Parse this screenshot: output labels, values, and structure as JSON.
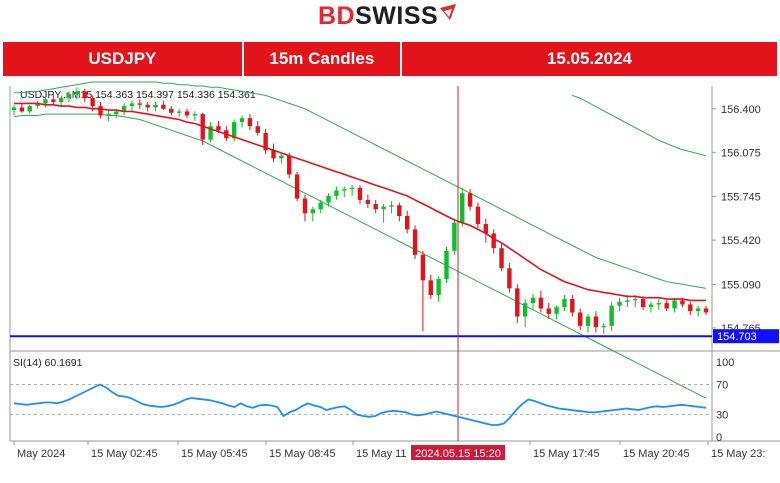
{
  "brand": {
    "bd": "BD",
    "swiss": "SWISS"
  },
  "banner": {
    "pair": "USDJPY",
    "timeframe": "15m Candles",
    "date": "15.05.2024"
  },
  "colors": {
    "accent": "#e3131b",
    "bull": "#0fbf2a",
    "bear": "#e3131b",
    "ma_fast": "#e3131b",
    "band": "#36a852",
    "support": "#1010ff",
    "rsi": "#1e8ff0",
    "cursor": "#d01a3a"
  },
  "chart_data": {
    "type": "candlestick",
    "header": "USDJPY..r,M15  154.363 154.397 154.336 154.361",
    "price_axis": {
      "ylim": [
        154.6,
        156.57
      ],
      "ticks": [
        "156.400",
        "156.075",
        "155.745",
        "155.420",
        "155.090",
        "154.765"
      ]
    },
    "time_axis": {
      "ticks": [
        "May 2024",
        "15 May 02:45",
        "15 May 05:45",
        "15 May 08:45",
        "15 May 11",
        "15 May 17:45",
        "15 May 20:45",
        "15 May 23:"
      ]
    },
    "cursor_time_label": "2024.05.15 15:20",
    "support_level": {
      "value": 154.703,
      "label": "154.703"
    },
    "candles": [
      {
        "o": 156.39,
        "h": 156.43,
        "l": 156.35,
        "c": 156.41
      },
      {
        "o": 156.41,
        "h": 156.44,
        "l": 156.37,
        "c": 156.38
      },
      {
        "o": 156.38,
        "h": 156.43,
        "l": 156.36,
        "c": 156.42
      },
      {
        "o": 156.42,
        "h": 156.46,
        "l": 156.4,
        "c": 156.44
      },
      {
        "o": 156.44,
        "h": 156.49,
        "l": 156.41,
        "c": 156.47
      },
      {
        "o": 156.47,
        "h": 156.51,
        "l": 156.43,
        "c": 156.45
      },
      {
        "o": 156.45,
        "h": 156.5,
        "l": 156.42,
        "c": 156.48
      },
      {
        "o": 156.48,
        "h": 156.53,
        "l": 156.45,
        "c": 156.51
      },
      {
        "o": 156.51,
        "h": 156.56,
        "l": 156.47,
        "c": 156.53
      },
      {
        "o": 156.53,
        "h": 156.55,
        "l": 156.45,
        "c": 156.48
      },
      {
        "o": 156.48,
        "h": 156.5,
        "l": 156.38,
        "c": 156.42
      },
      {
        "o": 156.42,
        "h": 156.45,
        "l": 156.33,
        "c": 156.35
      },
      {
        "o": 156.35,
        "h": 156.39,
        "l": 156.31,
        "c": 156.36
      },
      {
        "o": 156.36,
        "h": 156.4,
        "l": 156.33,
        "c": 156.38
      },
      {
        "o": 156.38,
        "h": 156.44,
        "l": 156.35,
        "c": 156.42
      },
      {
        "o": 156.42,
        "h": 156.46,
        "l": 156.38,
        "c": 156.44
      },
      {
        "o": 156.44,
        "h": 156.47,
        "l": 156.4,
        "c": 156.43
      },
      {
        "o": 156.43,
        "h": 156.45,
        "l": 156.38,
        "c": 156.41
      },
      {
        "o": 156.41,
        "h": 156.45,
        "l": 156.38,
        "c": 156.43
      },
      {
        "o": 156.43,
        "h": 156.46,
        "l": 156.39,
        "c": 156.4
      },
      {
        "o": 156.4,
        "h": 156.42,
        "l": 156.35,
        "c": 156.37
      },
      {
        "o": 156.37,
        "h": 156.4,
        "l": 156.34,
        "c": 156.38
      },
      {
        "o": 156.38,
        "h": 156.4,
        "l": 156.33,
        "c": 156.35
      },
      {
        "o": 156.35,
        "h": 156.38,
        "l": 156.31,
        "c": 156.36
      },
      {
        "o": 156.36,
        "h": 156.37,
        "l": 156.13,
        "c": 156.17
      },
      {
        "o": 156.17,
        "h": 156.3,
        "l": 156.15,
        "c": 156.27
      },
      {
        "o": 156.27,
        "h": 156.31,
        "l": 156.22,
        "c": 156.24
      },
      {
        "o": 156.24,
        "h": 156.27,
        "l": 156.16,
        "c": 156.18
      },
      {
        "o": 156.18,
        "h": 156.32,
        "l": 156.16,
        "c": 156.3
      },
      {
        "o": 156.3,
        "h": 156.35,
        "l": 156.26,
        "c": 156.33
      },
      {
        "o": 156.33,
        "h": 156.36,
        "l": 156.24,
        "c": 156.27
      },
      {
        "o": 156.27,
        "h": 156.31,
        "l": 156.2,
        "c": 156.22
      },
      {
        "o": 156.22,
        "h": 156.25,
        "l": 156.06,
        "c": 156.09
      },
      {
        "o": 156.09,
        "h": 156.14,
        "l": 156.0,
        "c": 156.03
      },
      {
        "o": 156.03,
        "h": 156.07,
        "l": 155.99,
        "c": 156.05
      },
      {
        "o": 156.05,
        "h": 156.07,
        "l": 155.88,
        "c": 155.91
      },
      {
        "o": 155.91,
        "h": 155.93,
        "l": 155.71,
        "c": 155.73
      },
      {
        "o": 155.73,
        "h": 155.76,
        "l": 155.56,
        "c": 155.62
      },
      {
        "o": 155.62,
        "h": 155.67,
        "l": 155.56,
        "c": 155.65
      },
      {
        "o": 155.65,
        "h": 155.72,
        "l": 155.62,
        "c": 155.7
      },
      {
        "o": 155.7,
        "h": 155.77,
        "l": 155.67,
        "c": 155.75
      },
      {
        "o": 155.75,
        "h": 155.82,
        "l": 155.72,
        "c": 155.79
      },
      {
        "o": 155.79,
        "h": 155.82,
        "l": 155.74,
        "c": 155.8
      },
      {
        "o": 155.8,
        "h": 155.83,
        "l": 155.75,
        "c": 155.81
      },
      {
        "o": 155.81,
        "h": 155.83,
        "l": 155.69,
        "c": 155.72
      },
      {
        "o": 155.72,
        "h": 155.76,
        "l": 155.66,
        "c": 155.69
      },
      {
        "o": 155.69,
        "h": 155.72,
        "l": 155.62,
        "c": 155.65
      },
      {
        "o": 155.65,
        "h": 155.69,
        "l": 155.55,
        "c": 155.67
      },
      {
        "o": 155.67,
        "h": 155.71,
        "l": 155.62,
        "c": 155.68
      },
      {
        "o": 155.68,
        "h": 155.7,
        "l": 155.56,
        "c": 155.6
      },
      {
        "o": 155.6,
        "h": 155.64,
        "l": 155.47,
        "c": 155.5
      },
      {
        "o": 155.5,
        "h": 155.53,
        "l": 155.28,
        "c": 155.31
      },
      {
        "o": 155.31,
        "h": 155.34,
        "l": 154.74,
        "c": 155.12
      },
      {
        "o": 155.12,
        "h": 155.16,
        "l": 154.98,
        "c": 155.01
      },
      {
        "o": 155.01,
        "h": 155.15,
        "l": 154.96,
        "c": 155.13
      },
      {
        "o": 155.13,
        "h": 155.37,
        "l": 155.1,
        "c": 155.34
      },
      {
        "o": 155.34,
        "h": 155.58,
        "l": 155.31,
        "c": 155.55
      },
      {
        "o": 155.55,
        "h": 155.81,
        "l": 155.52,
        "c": 155.77
      },
      {
        "o": 155.77,
        "h": 155.8,
        "l": 155.64,
        "c": 155.67
      },
      {
        "o": 155.67,
        "h": 155.7,
        "l": 155.51,
        "c": 155.54
      },
      {
        "o": 155.54,
        "h": 155.58,
        "l": 155.4,
        "c": 155.47
      },
      {
        "o": 155.47,
        "h": 155.5,
        "l": 155.32,
        "c": 155.36
      },
      {
        "o": 155.36,
        "h": 155.4,
        "l": 155.19,
        "c": 155.21
      },
      {
        "o": 155.21,
        "h": 155.25,
        "l": 155.03,
        "c": 155.06
      },
      {
        "o": 155.06,
        "h": 155.09,
        "l": 154.8,
        "c": 154.85
      },
      {
        "o": 154.85,
        "h": 154.98,
        "l": 154.77,
        "c": 154.95
      },
      {
        "o": 154.95,
        "h": 155.02,
        "l": 154.9,
        "c": 154.99
      },
      {
        "o": 154.99,
        "h": 155.04,
        "l": 154.88,
        "c": 154.91
      },
      {
        "o": 154.91,
        "h": 154.95,
        "l": 154.83,
        "c": 154.87
      },
      {
        "o": 154.87,
        "h": 154.93,
        "l": 154.83,
        "c": 154.92
      },
      {
        "o": 154.92,
        "h": 155.01,
        "l": 154.89,
        "c": 154.98
      },
      {
        "o": 154.98,
        "h": 155.01,
        "l": 154.85,
        "c": 154.88
      },
      {
        "o": 154.88,
        "h": 154.91,
        "l": 154.75,
        "c": 154.78
      },
      {
        "o": 154.78,
        "h": 154.87,
        "l": 154.73,
        "c": 154.85
      },
      {
        "o": 154.85,
        "h": 154.89,
        "l": 154.73,
        "c": 154.77
      },
      {
        "o": 154.77,
        "h": 154.8,
        "l": 154.72,
        "c": 154.78
      },
      {
        "o": 154.78,
        "h": 154.96,
        "l": 154.74,
        "c": 154.93
      },
      {
        "o": 154.93,
        "h": 154.99,
        "l": 154.89,
        "c": 154.96
      },
      {
        "o": 154.96,
        "h": 155.01,
        "l": 154.92,
        "c": 154.97
      },
      {
        "o": 154.97,
        "h": 155.01,
        "l": 154.92,
        "c": 154.98
      },
      {
        "o": 154.98,
        "h": 155.0,
        "l": 154.9,
        "c": 154.92
      },
      {
        "o": 154.92,
        "h": 154.96,
        "l": 154.88,
        "c": 154.94
      },
      {
        "o": 154.94,
        "h": 154.98,
        "l": 154.9,
        "c": 154.95
      },
      {
        "o": 154.95,
        "h": 154.97,
        "l": 154.89,
        "c": 154.91
      },
      {
        "o": 154.91,
        "h": 154.99,
        "l": 154.88,
        "c": 154.97
      },
      {
        "o": 154.97,
        "h": 154.99,
        "l": 154.92,
        "c": 154.94
      },
      {
        "o": 154.94,
        "h": 154.96,
        "l": 154.86,
        "c": 154.89
      },
      {
        "o": 154.89,
        "h": 154.93,
        "l": 154.85,
        "c": 154.91
      },
      {
        "o": 154.91,
        "h": 154.93,
        "l": 154.86,
        "c": 154.88
      }
    ],
    "ma_slow": [
      156.44,
      156.44,
      156.44,
      156.44,
      156.43,
      156.43,
      156.42,
      156.42,
      156.41,
      156.41,
      156.4,
      156.4,
      156.39,
      156.39,
      156.38,
      156.38,
      156.37,
      156.36,
      156.35,
      156.34,
      156.33,
      156.32,
      156.3,
      156.29,
      156.27,
      156.25,
      156.23,
      156.21,
      156.19,
      156.17,
      156.15,
      156.13,
      156.11,
      156.09,
      156.07,
      156.05,
      156.03,
      156.01,
      155.99,
      155.97,
      155.95,
      155.93,
      155.91,
      155.89,
      155.87,
      155.85,
      155.83,
      155.81,
      155.79,
      155.77,
      155.75,
      155.72,
      155.69,
      155.66,
      155.63,
      155.6,
      155.57,
      155.55,
      155.53,
      155.5,
      155.47,
      155.43,
      155.4,
      155.36,
      155.32,
      155.28,
      155.24,
      155.2,
      155.17,
      155.14,
      155.11,
      155.09,
      155.07,
      155.05,
      155.04,
      155.03,
      155.02,
      155.01,
      155.0,
      155.0,
      154.99,
      154.99,
      154.99,
      154.98,
      154.98,
      154.98,
      154.97,
      154.97,
      154.97
    ],
    "band_upper": [
      156.52,
      156.52,
      156.53,
      156.53,
      156.54,
      156.55,
      156.56,
      156.57,
      156.58,
      156.59,
      156.6,
      156.6,
      156.6,
      156.6,
      156.6,
      156.6,
      156.6,
      156.6,
      156.6,
      156.59,
      156.59,
      156.58,
      156.58,
      156.57,
      156.57,
      156.56,
      156.56,
      156.55,
      156.54,
      156.53,
      156.52,
      156.51,
      156.5,
      156.48,
      156.46,
      156.44,
      156.42,
      156.4,
      156.37,
      156.34,
      156.31,
      156.28,
      156.25,
      156.22,
      156.19,
      156.16,
      156.13,
      156.1,
      156.07,
      156.04,
      156.01,
      155.98,
      155.95,
      155.92,
      155.89,
      155.86,
      155.83,
      155.8,
      155.77,
      155.74,
      155.71,
      155.68,
      155.65,
      155.62,
      155.59,
      155.56,
      155.53,
      155.5,
      155.47,
      155.44,
      155.41,
      155.38,
      155.35,
      155.32,
      155.29,
      155.27,
      155.25,
      155.23,
      155.21,
      155.19,
      155.17,
      155.15,
      155.13,
      155.11,
      155.1,
      155.09,
      155.08,
      155.07,
      155.06
    ],
    "band_lower": [
      156.34,
      156.35,
      156.35,
      156.35,
      156.36,
      156.36,
      156.36,
      156.36,
      156.36,
      156.36,
      156.36,
      156.36,
      156.35,
      156.35,
      156.34,
      156.33,
      156.32,
      156.3,
      156.28,
      156.26,
      156.24,
      156.22,
      156.2,
      156.18,
      156.16,
      156.13,
      156.1,
      156.07,
      156.04,
      156.01,
      155.98,
      155.95,
      155.92,
      155.89,
      155.86,
      155.83,
      155.8,
      155.77,
      155.74,
      155.71,
      155.68,
      155.65,
      155.62,
      155.59,
      155.56,
      155.53,
      155.5,
      155.47,
      155.44,
      155.41,
      155.38,
      155.35,
      155.32,
      155.29,
      155.26,
      155.23,
      155.2,
      155.17,
      155.14,
      155.11,
      155.08,
      155.05,
      155.02,
      154.99,
      154.96,
      154.93,
      154.9,
      154.87,
      154.84,
      154.81,
      154.78,
      154.75,
      154.72,
      154.69,
      154.66,
      154.63,
      154.6,
      154.57,
      154.54,
      154.51,
      154.48,
      154.45,
      154.42,
      154.39,
      154.36,
      154.33,
      154.3,
      154.27,
      154.24
    ],
    "upper_channel": [
      [
        572,
        156.5
      ],
      [
        580,
        156.48
      ],
      [
        600,
        156.4
      ],
      [
        620,
        156.32
      ],
      [
        640,
        156.24
      ],
      [
        660,
        156.16
      ],
      [
        680,
        156.1
      ],
      [
        706,
        156.05
      ]
    ],
    "rsi": {
      "label": "SI(14) 60.1691",
      "ticks": [
        "100",
        "70",
        "30",
        "0"
      ],
      "levels": [
        70,
        30
      ],
      "ylim": [
        0,
        100
      ],
      "values": [
        45,
        44,
        43,
        44,
        45,
        46,
        46,
        45,
        47,
        50,
        54,
        58,
        62,
        66,
        70,
        66,
        60,
        55,
        54,
        52,
        48,
        44,
        42,
        41,
        40,
        41,
        43,
        46,
        50,
        52,
        51,
        50,
        49,
        47,
        45,
        42,
        40,
        45,
        41,
        39,
        42,
        43,
        42,
        40,
        28,
        33,
        36,
        41,
        45,
        42,
        40,
        36,
        38,
        40,
        41,
        36,
        30,
        28,
        27,
        28,
        32,
        34,
        35,
        34,
        33,
        30,
        29,
        30,
        32,
        34,
        32,
        30,
        28,
        26,
        24,
        22,
        20,
        18,
        16,
        16,
        18,
        26,
        36,
        44,
        50,
        48,
        45,
        42,
        40,
        38,
        37,
        36,
        35,
        34,
        33,
        33,
        34,
        35,
        36,
        37,
        38,
        37,
        36,
        38,
        40,
        41,
        40,
        41,
        42,
        43,
        42,
        41,
        40,
        39
      ]
    }
  }
}
